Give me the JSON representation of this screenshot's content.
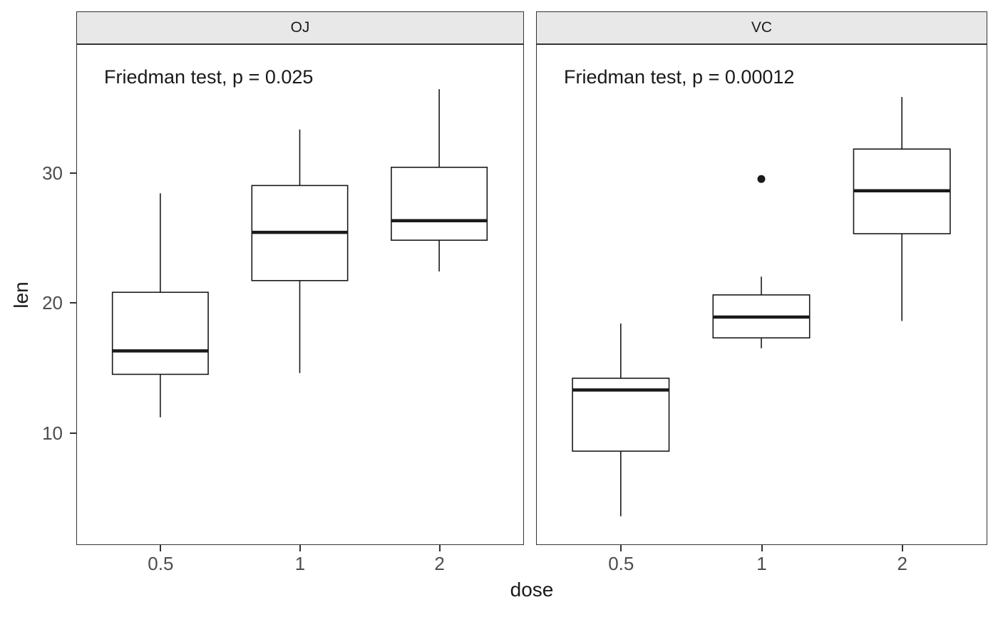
{
  "chart_data": {
    "type": "boxplot",
    "title": "",
    "xlabel": "dose",
    "ylabel": "len",
    "ylim": [
      1.5,
      39.8
    ],
    "yticks": [
      10,
      20,
      30
    ],
    "categories": [
      "0.5",
      "1",
      "2"
    ],
    "grid": false,
    "legend": "none",
    "facets": [
      {
        "label": "OJ",
        "annotation": "Friedman test, p = 0.025",
        "p_value": 0.025,
        "boxes": [
          {
            "dose": "0.5",
            "min": 11.2,
            "q1": 14.5,
            "median": 16.3,
            "q3": 20.8,
            "max": 28.4,
            "outliers": []
          },
          {
            "dose": "1",
            "min": 14.6,
            "q1": 21.7,
            "median": 25.4,
            "q3": 29.0,
            "max": 33.3,
            "outliers": []
          },
          {
            "dose": "2",
            "min": 22.4,
            "q1": 24.8,
            "median": 26.3,
            "q3": 30.4,
            "max": 36.4,
            "outliers": []
          }
        ]
      },
      {
        "label": "VC",
        "annotation": "Friedman test, p = 0.00012",
        "p_value": 0.00012,
        "boxes": [
          {
            "dose": "0.5",
            "min": 3.6,
            "q1": 8.6,
            "median": 13.3,
            "q3": 14.2,
            "max": 18.4,
            "outliers": []
          },
          {
            "dose": "1",
            "min": 16.5,
            "q1": 17.3,
            "median": 18.9,
            "q3": 20.6,
            "max": 22.0,
            "outliers": [
              29.5
            ]
          },
          {
            "dose": "2",
            "min": 18.6,
            "q1": 25.3,
            "median": 28.6,
            "q3": 31.8,
            "max": 35.8,
            "outliers": []
          }
        ]
      }
    ]
  }
}
